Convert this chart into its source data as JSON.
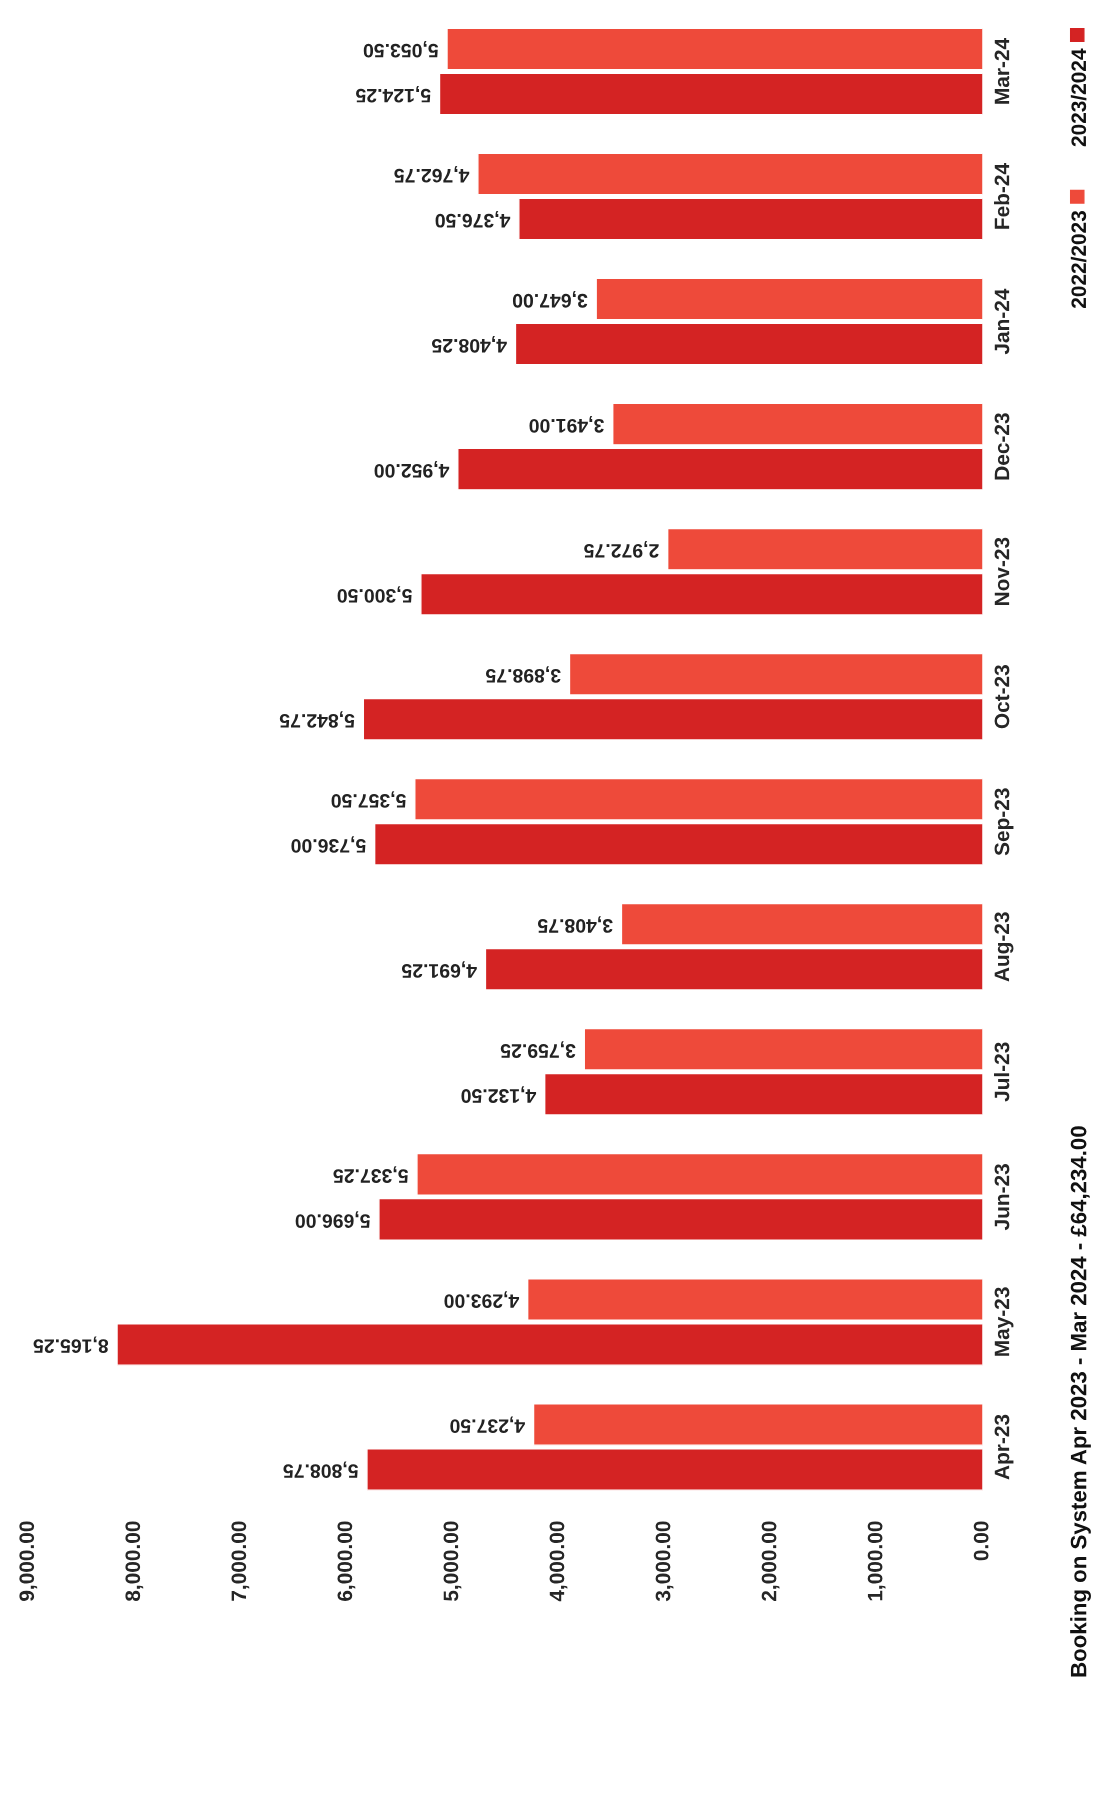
{
  "chart_data": {
    "type": "bar",
    "orientation": "horizontal",
    "title": "Booking on System Apr 2023 - Mar 2024 - £64,234.00",
    "categories": [
      "Mar-24",
      "Feb-24",
      "Jan-24",
      "Dec-23",
      "Nov-23",
      "Oct-23",
      "Sep-23",
      "Aug-23",
      "Jul-23",
      "Jun-23",
      "May-23",
      "Apr-23"
    ],
    "series": [
      {
        "name": "2023/2024",
        "color": "#d42323",
        "values": [
          5124.25,
          4376.5,
          4408.25,
          4952.0,
          5300.5,
          5842.75,
          5736.0,
          4691.25,
          4132.5,
          5696.0,
          8165.25,
          5808.75
        ],
        "value_labels": [
          "5,124.25",
          "4,376.50",
          "4,408.25",
          "4,952.00",
          "5,300.50",
          "5,842.75",
          "5,736.00",
          "4,691.25",
          "4,132.50",
          "5,696.00",
          "8,165.25",
          "5,808.75"
        ]
      },
      {
        "name": "2022/2023",
        "color": "#ee4a3a",
        "values": [
          5053.5,
          4762.75,
          3647.0,
          3491.0,
          2972.75,
          3898.75,
          5357.5,
          3408.75,
          3759.25,
          5337.25,
          4293.0,
          4237.5
        ],
        "value_labels": [
          "5,053.50",
          "4,762.75",
          "3,647.00",
          "3,491.00",
          "2,972.75",
          "3,898.75",
          "5,357.50",
          "3,408.75",
          "3,759.25",
          "5,337.25",
          "4,293.00",
          "4,237.50"
        ]
      }
    ],
    "xlim": [
      9000,
      0
    ],
    "xticks": [
      {
        "value": 9000,
        "label": "9,000.00"
      },
      {
        "value": 8000,
        "label": "8,000.00"
      },
      {
        "value": 7000,
        "label": "7,000.00"
      },
      {
        "value": 6000,
        "label": "6,000.00"
      },
      {
        "value": 5000,
        "label": "5,000.00"
      },
      {
        "value": 4000,
        "label": "4,000.00"
      },
      {
        "value": 3000,
        "label": "3,000.00"
      },
      {
        "value": 2000,
        "label": "2,000.00"
      },
      {
        "value": 1000,
        "label": "1,000.00"
      },
      {
        "value": 0,
        "label": "0.00"
      }
    ],
    "legend": "top right",
    "grid": false
  }
}
